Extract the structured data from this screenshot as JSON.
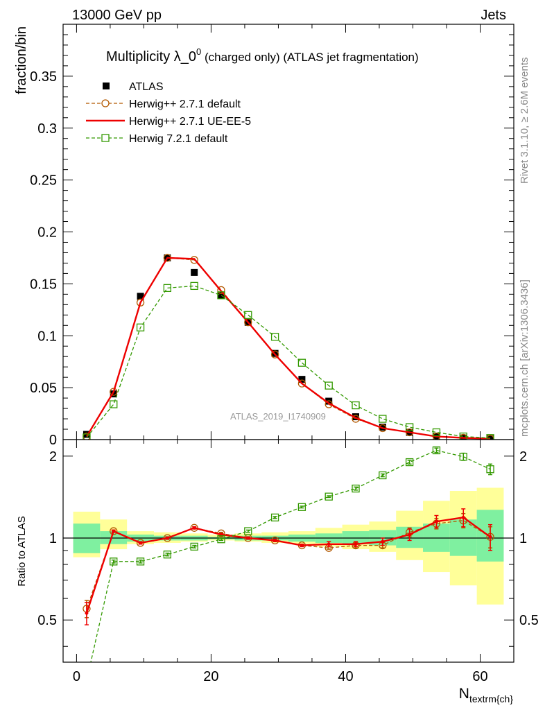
{
  "header": {
    "left": "13000 GeV pp",
    "right": "Jets"
  },
  "side_labels": {
    "rivet": "Rivet 3.1.10, ≥ 2.6M events",
    "mcplots": "mcplots.cern.ch [arXiv:1306.3436]"
  },
  "title": {
    "main": "Multiplicity λ_0",
    "sup": "0",
    "rest": " (charged only) (ATLAS jet fragmentation)"
  },
  "watermark": "ATLAS_2019_I1740909",
  "colors": {
    "atlas": "#000000",
    "h271": "#b35900",
    "ueee5": "#ee0000",
    "h721": "#339900",
    "band_green": "#7ff0a0",
    "band_yellow": "#ffff99"
  },
  "chart_data": [
    {
      "type": "line",
      "panel": "main",
      "ylabel": "fraction/bin",
      "xlim": [
        -2,
        65
      ],
      "ylim": [
        0,
        0.4
      ],
      "x_ticks": [
        0,
        20,
        40,
        60
      ],
      "y_ticks": [
        0,
        0.05,
        0.1,
        0.15,
        0.2,
        0.25,
        0.3,
        0.35
      ],
      "y_tick_labels": [
        "0",
        "0.05",
        "0.1",
        "0.15",
        "0.2",
        "0.25",
        "0.3",
        "0.35"
      ],
      "x": [
        1.5,
        5.5,
        9.5,
        13.5,
        17.5,
        21.5,
        25.5,
        29.5,
        33.5,
        37.5,
        41.5,
        45.5,
        49.5,
        53.5,
        57.5,
        61.5
      ],
      "series": [
        {
          "name": "ATLAS",
          "style": "square-filled",
          "values": [
            0.005,
            0.044,
            0.138,
            0.175,
            0.161,
            0.139,
            0.113,
            0.083,
            0.058,
            0.037,
            0.022,
            0.012,
            0.007,
            0.003,
            0.0015,
            0.0008
          ]
        },
        {
          "name": "Herwig++ 2.7.1 default",
          "style": "circle-dashed",
          "values": [
            0.003,
            0.046,
            0.132,
            0.175,
            0.173,
            0.144,
            0.113,
            0.082,
            0.054,
            0.034,
            0.02,
            0.011,
            0.007,
            0.003,
            0.0017,
            0.0008
          ]
        },
        {
          "name": "Herwig++ 2.7.1 UE-EE-5",
          "style": "solid",
          "values": [
            0.003,
            0.046,
            0.132,
            0.175,
            0.174,
            0.143,
            0.113,
            0.082,
            0.054,
            0.035,
            0.021,
            0.011,
            0.007,
            0.003,
            0.0017,
            0.0008
          ]
        },
        {
          "name": "Herwig 7.2.1 default",
          "style": "open-square-dashed",
          "values": [
            0.002,
            0.034,
            0.108,
            0.146,
            0.148,
            0.139,
            0.12,
            0.099,
            0.074,
            0.052,
            0.033,
            0.02,
            0.012,
            0.007,
            0.003,
            0.0015
          ]
        }
      ]
    },
    {
      "type": "line",
      "panel": "ratio",
      "ylabel": "Ratio to ATLAS",
      "xlabel_main": "N",
      "xlabel_sub": "textrm{ch}",
      "xlim": [
        -2,
        65
      ],
      "ylim": [
        0.35,
        2.3
      ],
      "x_ticks": [
        0,
        20,
        40,
        60
      ],
      "y_ticks": [
        0.5,
        1,
        2
      ],
      "y_tick_labels": [
        "0.5",
        "1",
        "2"
      ],
      "x": [
        1.5,
        5.5,
        9.5,
        13.5,
        17.5,
        21.5,
        25.5,
        29.5,
        33.5,
        37.5,
        41.5,
        45.5,
        49.5,
        53.5,
        57.5,
        61.5
      ],
      "band_edges": [
        -0.5,
        3.5,
        7.5,
        11.5,
        15.5,
        19.5,
        23.5,
        27.5,
        31.5,
        35.5,
        39.5,
        43.5,
        47.5,
        51.5,
        55.5,
        59.5,
        63.5
      ],
      "band_green": [
        [
          0.88,
          1.13
        ],
        [
          0.95,
          1.06
        ],
        [
          0.97,
          1.03
        ],
        [
          0.98,
          1.02
        ],
        [
          0.98,
          1.02
        ],
        [
          0.99,
          1.01
        ],
        [
          0.98,
          1.02
        ],
        [
          0.98,
          1.02
        ],
        [
          0.97,
          1.03
        ],
        [
          0.96,
          1.04
        ],
        [
          0.95,
          1.06
        ],
        [
          0.94,
          1.07
        ],
        [
          0.92,
          1.1
        ],
        [
          0.89,
          1.13
        ],
        [
          0.86,
          1.17
        ],
        [
          0.82,
          1.27
        ]
      ],
      "band_yellow": [
        [
          0.85,
          1.25
        ],
        [
          0.91,
          1.17
        ],
        [
          0.95,
          1.06
        ],
        [
          0.96,
          1.05
        ],
        [
          0.97,
          1.04
        ],
        [
          0.98,
          1.03
        ],
        [
          0.97,
          1.04
        ],
        [
          0.96,
          1.05
        ],
        [
          0.95,
          1.06
        ],
        [
          0.93,
          1.09
        ],
        [
          0.91,
          1.12
        ],
        [
          0.89,
          1.15
        ],
        [
          0.83,
          1.26
        ],
        [
          0.75,
          1.37
        ],
        [
          0.67,
          1.49
        ],
        [
          0.57,
          1.53
        ]
      ],
      "series": [
        {
          "name": "Herwig++ 2.7.1 default",
          "style": "circle-dashed",
          "values": [
            0.55,
            1.06,
            0.96,
            1.0,
            1.09,
            1.04,
            1.0,
            0.98,
            0.94,
            0.92,
            0.94,
            0.94,
            1.05,
            1.13,
            1.16,
            1.01
          ],
          "errors": [
            0.04,
            0.01,
            0.01,
            0.01,
            0.01,
            0.01,
            0.01,
            0.01,
            0.01,
            0.01,
            0.02,
            0.02,
            0.04,
            0.05,
            0.07,
            0.09
          ]
        },
        {
          "name": "Herwig++ 2.7.1 UE-EE-5",
          "style": "solid",
          "values": [
            0.53,
            1.06,
            0.96,
            1.0,
            1.09,
            1.03,
            1.0,
            0.98,
            0.94,
            0.95,
            0.95,
            0.97,
            1.03,
            1.15,
            1.19,
            1.01
          ],
          "errors": [
            0.05,
            0.01,
            0.01,
            0.01,
            0.01,
            0.01,
            0.01,
            0.01,
            0.01,
            0.02,
            0.02,
            0.03,
            0.05,
            0.06,
            0.09,
            0.11
          ]
        },
        {
          "name": "Herwig 7.2.1 default",
          "style": "open-square-dashed",
          "values": [
            0.3,
            0.82,
            0.82,
            0.87,
            0.93,
            0.99,
            1.06,
            1.19,
            1.3,
            1.42,
            1.52,
            1.7,
            1.9,
            2.1,
            1.99,
            1.79
          ],
          "errors": [
            0.02,
            0.01,
            0.01,
            0.01,
            0.01,
            0.01,
            0.01,
            0.01,
            0.01,
            0.01,
            0.02,
            0.02,
            0.03,
            0.04,
            0.06,
            0.08
          ]
        }
      ]
    }
  ]
}
